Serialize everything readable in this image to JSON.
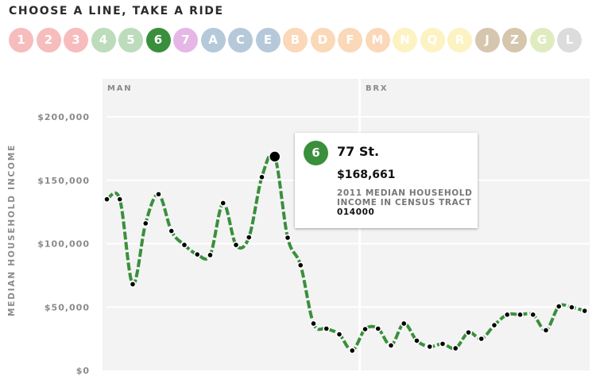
{
  "header": {
    "title": "CHOOSE A LINE, TAKE A RIDE"
  },
  "lines": [
    {
      "label": "1",
      "color": "#f7bcbc",
      "active": false
    },
    {
      "label": "2",
      "color": "#f7bcbc",
      "active": false
    },
    {
      "label": "3",
      "color": "#f7bcbc",
      "active": false
    },
    {
      "label": "4",
      "color": "#bcdcbc",
      "active": false
    },
    {
      "label": "5",
      "color": "#bcdcbc",
      "active": false
    },
    {
      "label": "6",
      "color": "#3a8f3c",
      "active": true
    },
    {
      "label": "7",
      "color": "#e6b7e6",
      "active": false
    },
    {
      "label": "A",
      "color": "#b5c9da",
      "active": false
    },
    {
      "label": "C",
      "color": "#b5c9da",
      "active": false
    },
    {
      "label": "E",
      "color": "#b5c9da",
      "active": false
    },
    {
      "label": "B",
      "color": "#fad8b8",
      "active": false
    },
    {
      "label": "D",
      "color": "#fad8b8",
      "active": false
    },
    {
      "label": "F",
      "color": "#fad8b8",
      "active": false
    },
    {
      "label": "M",
      "color": "#fad8b8",
      "active": false
    },
    {
      "label": "N",
      "color": "#fdf2c2",
      "active": false
    },
    {
      "label": "Q",
      "color": "#fdf2c2",
      "active": false
    },
    {
      "label": "R",
      "color": "#fdf2c2",
      "active": false
    },
    {
      "label": "J",
      "color": "#d6c6ae",
      "active": false
    },
    {
      "label": "Z",
      "color": "#d6c6ae",
      "active": false
    },
    {
      "label": "G",
      "color": "#deecc0",
      "active": false
    },
    {
      "label": "L",
      "color": "#dcdcdc",
      "active": false
    }
  ],
  "colors": {
    "line": "#3a8f3c",
    "panel": "#f3f3f3",
    "grid": "#ffffff",
    "dot": "#000000"
  },
  "tooltip": {
    "badge": "6",
    "station": "77 St.",
    "value": "$168,661",
    "desc": "2011 MEDIAN HOUSEHOLD INCOME IN CENSUS TRACT",
    "tract": "014000"
  },
  "chart_data": {
    "type": "line",
    "title": "CHOOSE A LINE, TAKE A RIDE",
    "ylabel": "MEDIAN HOUSEHOLD INCOME",
    "xlabel": "",
    "ylim": [
      0,
      200000
    ],
    "yticks": [
      0,
      50000,
      100000,
      150000,
      200000
    ],
    "ytick_labels": [
      "$0",
      "$50,000",
      "$100,000",
      "$150,000",
      "$200,000"
    ],
    "grid": true,
    "panels": [
      {
        "label": "MAN",
        "start_index": 0,
        "end_index": 19
      },
      {
        "label": "BRX",
        "start_index": 20,
        "end_index": 37
      }
    ],
    "series": [
      {
        "name": "6",
        "values": [
          135000,
          135000,
          68000,
          116000,
          139000,
          110000,
          99000,
          91500,
          91000,
          132000,
          99000,
          105000,
          152500,
          168661,
          104700,
          83000,
          37000,
          33000,
          28500,
          15700,
          32600,
          33000,
          19700,
          37000,
          23500,
          18800,
          21000,
          17500,
          30000,
          25000,
          35700,
          44000,
          44000,
          44000,
          31700,
          50500,
          49800,
          47000
        ]
      }
    ],
    "highlight": {
      "index": 13,
      "station": "77 St.",
      "value": 168661,
      "tract": "014000"
    }
  }
}
